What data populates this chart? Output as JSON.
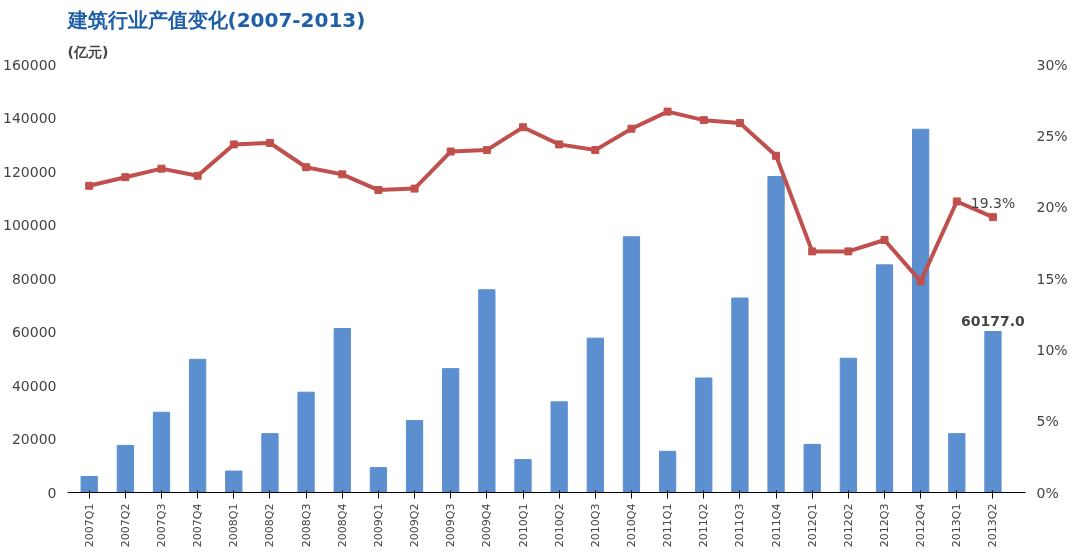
{
  "chart_data": {
    "type": "bar",
    "title": "建筑行业产值变化(2007-2013)",
    "ylabel": "(亿元)",
    "categories": [
      "2007Q1",
      "2007Q2",
      "2007Q3",
      "2007Q4",
      "2008Q1",
      "2008Q2",
      "2008Q3",
      "2008Q4",
      "2009Q1",
      "2009Q2",
      "2009Q3",
      "2009Q4",
      "2010Q1",
      "2010Q2",
      "2010Q3",
      "2010Q4",
      "2011Q1",
      "2011Q2",
      "2011Q3",
      "2011Q4",
      "2012Q1",
      "2012Q2",
      "2012Q3",
      "2012Q4",
      "2013Q1",
      "2013Q2"
    ],
    "series": [
      {
        "color": "#5b8fd0",
        "values": [
          6000,
          17600,
          30000,
          49800,
          8000,
          22000,
          37500,
          61300,
          9300,
          26900,
          46300,
          75800,
          12300,
          33900,
          57700,
          95600,
          15400,
          42800,
          72700,
          118100,
          18000,
          50200,
          85100,
          135800,
          22000,
          60177
        ],
        "value_labels": [
          null,
          null,
          null,
          null,
          null,
          null,
          null,
          null,
          null,
          null,
          null,
          null,
          null,
          null,
          null,
          null,
          null,
          null,
          null,
          null,
          null,
          null,
          null,
          null,
          null,
          "60177.0"
        ]
      },
      {
        "type": "line",
        "axis": "y2",
        "color": "#c0504d",
        "marker": "square",
        "values": [
          21.5,
          22.1,
          22.7,
          22.2,
          24.4,
          24.5,
          22.8,
          22.3,
          21.2,
          21.3,
          23.9,
          24.0,
          25.6,
          24.4,
          24.0,
          25.5,
          26.7,
          26.1,
          25.9,
          23.6,
          16.9,
          16.9,
          17.7,
          14.8,
          20.4,
          19.3
        ],
        "value_labels": [
          null,
          null,
          null,
          null,
          null,
          null,
          null,
          null,
          null,
          null,
          null,
          null,
          null,
          null,
          null,
          null,
          null,
          null,
          null,
          null,
          null,
          null,
          null,
          null,
          null,
          "19.3%"
        ]
      }
    ],
    "ylim": [
      0,
      160000
    ],
    "yticks": [
      0,
      20000,
      40000,
      60000,
      80000,
      100000,
      120000,
      140000,
      160000
    ],
    "y2lim": [
      0,
      30
    ],
    "y2ticks": [
      {
        "value": 0,
        "label": "0%"
      },
      {
        "value": 5,
        "label": "5%"
      },
      {
        "value": 10,
        "label": "10%"
      },
      {
        "value": 15,
        "label": "15%"
      },
      {
        "value": 20,
        "label": "20%"
      },
      {
        "value": 25,
        "label": "25%"
      },
      {
        "value": 30,
        "label": "30%"
      }
    ],
    "grid": false
  }
}
